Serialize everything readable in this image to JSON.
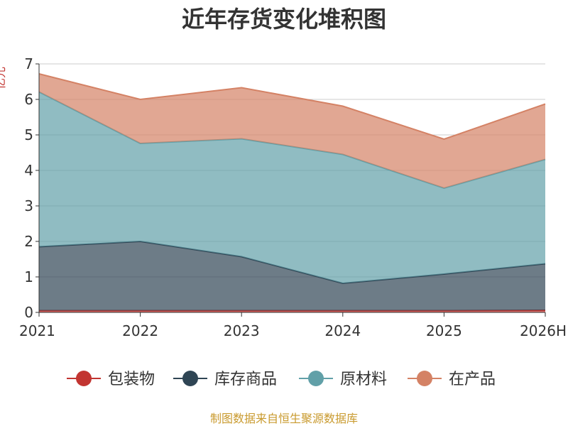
{
  "chart_data": {
    "type": "area",
    "stacked": true,
    "title": "近年存货变化堆积图",
    "ylabel": "亿元",
    "categories": [
      "2021",
      "2022",
      "2023",
      "2024",
      "2025",
      "2026H"
    ],
    "ylim": [
      0,
      7
    ],
    "yticks": [
      0,
      1,
      2,
      3,
      4,
      5,
      6,
      7
    ],
    "grid": true,
    "legend_position": "bottom",
    "series": [
      {
        "name": "包装物",
        "color": "#c23531",
        "values": [
          0.05,
          0.05,
          0.05,
          0.05,
          0.05,
          0.06
        ]
      },
      {
        "name": "库存商品",
        "color": "#2f4554",
        "values": [
          1.8,
          1.95,
          1.52,
          0.77,
          1.03,
          1.31
        ]
      },
      {
        "name": "原材料",
        "color": "#61a0a8",
        "values": [
          4.36,
          2.76,
          3.32,
          3.63,
          2.42,
          2.94
        ]
      },
      {
        "name": "在产品",
        "color": "#d48265",
        "values": [
          0.51,
          1.24,
          1.44,
          1.36,
          1.38,
          1.56
        ]
      }
    ]
  },
  "source": "制图数据来自恒生聚源数据库"
}
